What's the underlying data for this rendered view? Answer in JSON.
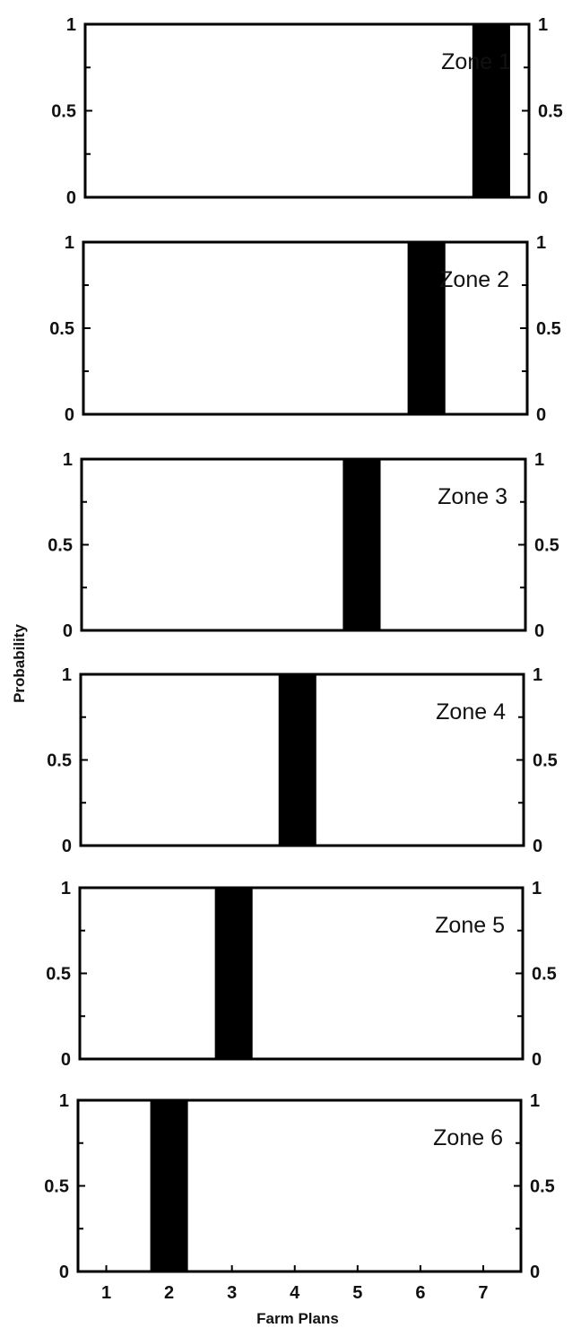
{
  "chart_data": {
    "type": "bar",
    "xlabel": "Farm Plans",
    "ylabel": "Probability",
    "x_ticks": [
      "1",
      "2",
      "3",
      "4",
      "5",
      "6",
      "7"
    ],
    "y_ticks": [
      "0",
      "0.5",
      "1"
    ],
    "ylim": [
      0,
      1
    ],
    "grid": false,
    "bar_color": "#000000",
    "panels": [
      {
        "label": "Zone 1",
        "farm_plan": 7,
        "probability": 1
      },
      {
        "label": "Zone 2",
        "farm_plan": 6,
        "probability": 1
      },
      {
        "label": "Zone 3",
        "farm_plan": 5,
        "probability": 1
      },
      {
        "label": "Zone 4",
        "farm_plan": 4,
        "probability": 1
      },
      {
        "label": "Zone 5",
        "farm_plan": 3,
        "probability": 1
      },
      {
        "label": "Zone 6",
        "farm_plan": 2,
        "probability": 1
      }
    ]
  }
}
